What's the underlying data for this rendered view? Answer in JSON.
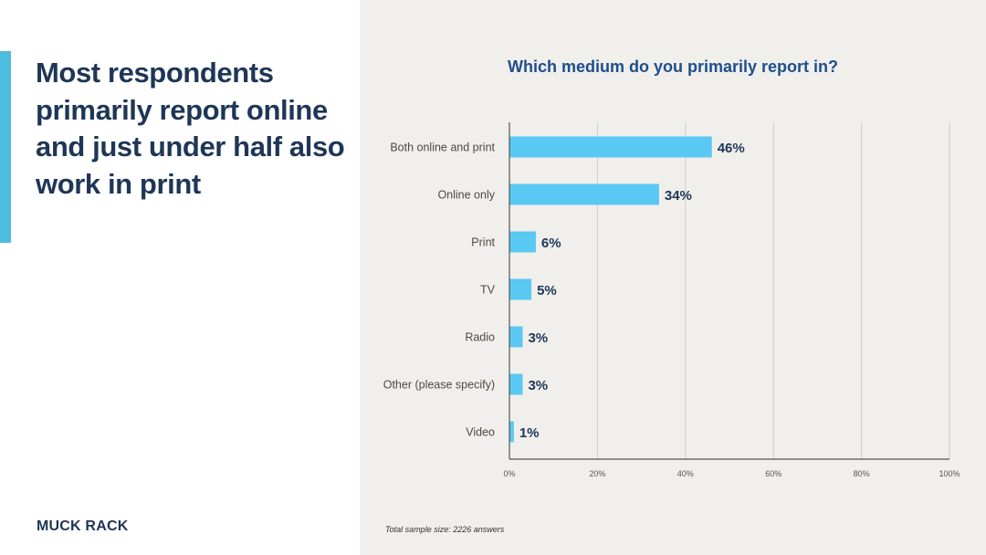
{
  "headline": "Most respondents primarily report online and just under half also work in print",
  "logo": "MUCK RACK",
  "footnote": "Total sample size: 2226 answers",
  "colors": {
    "accent": "#4dbde0",
    "bar": "#59c8f2",
    "grid": "#cfcfcf",
    "axis": "#555555"
  },
  "chart_data": {
    "type": "bar",
    "orientation": "horizontal",
    "title": "Which medium do you primarily report in?",
    "categories": [
      "Both online and print",
      "Online only",
      "Print",
      "TV",
      "Radio",
      "Other (please specify)",
      "Video"
    ],
    "values": [
      46,
      34,
      6,
      5,
      3,
      3,
      1
    ],
    "value_labels": [
      "46%",
      "34%",
      "6%",
      "5%",
      "3%",
      "3%",
      "1%"
    ],
    "xlim": [
      0,
      100
    ],
    "xticks": [
      0,
      20,
      40,
      60,
      80,
      100
    ],
    "xtick_labels": [
      "0%",
      "20%",
      "40%",
      "60%",
      "80%",
      "100%"
    ],
    "grid": true
  }
}
